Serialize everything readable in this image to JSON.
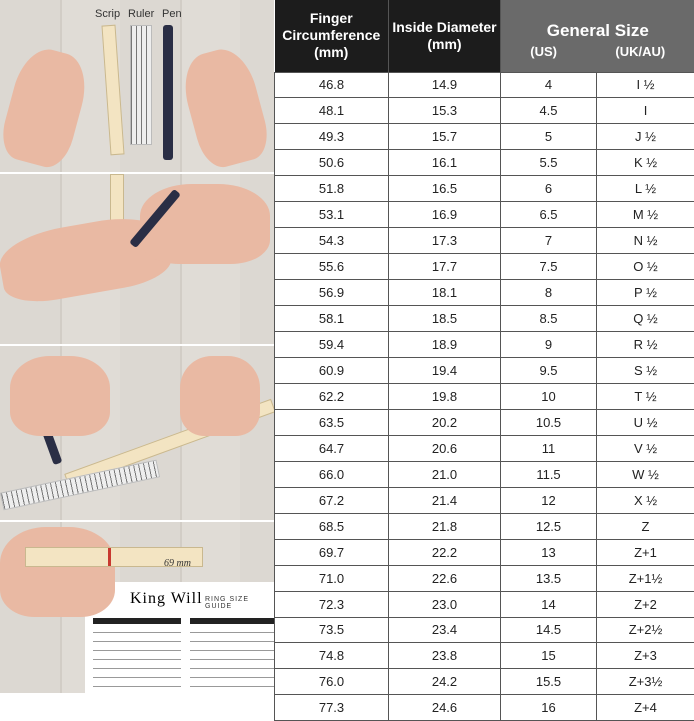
{
  "illustration": {
    "tool_labels": [
      "Scrip",
      "Ruler",
      "Pen"
    ],
    "measurement_note": "69 mm",
    "guide_brand": "King Will",
    "guide_subtitle": "RING SIZE GUIDE"
  },
  "table": {
    "headers": {
      "circumference": "Finger Circumference (mm)",
      "diameter": "Inside Diameter (mm)",
      "general": "General Size",
      "us": "(US)",
      "uk": "(UK/AU)"
    },
    "rows": [
      [
        "46.8",
        "14.9",
        "4",
        "I ½"
      ],
      [
        "48.1",
        "15.3",
        "4.5",
        "I"
      ],
      [
        "49.3",
        "15.7",
        "5",
        "J ½"
      ],
      [
        "50.6",
        "16.1",
        "5.5",
        "K ½"
      ],
      [
        "51.8",
        "16.5",
        "6",
        "L ½"
      ],
      [
        "53.1",
        "16.9",
        "6.5",
        "M ½"
      ],
      [
        "54.3",
        "17.3",
        "7",
        "N ½"
      ],
      [
        "55.6",
        "17.7",
        "7.5",
        "O ½"
      ],
      [
        "56.9",
        "18.1",
        "8",
        "P ½"
      ],
      [
        "58.1",
        "18.5",
        "8.5",
        "Q ½"
      ],
      [
        "59.4",
        "18.9",
        "9",
        "R ½"
      ],
      [
        "60.9",
        "19.4",
        "9.5",
        "S ½"
      ],
      [
        "62.2",
        "19.8",
        "10",
        "T ½"
      ],
      [
        "63.5",
        "20.2",
        "10.5",
        "U ½"
      ],
      [
        "64.7",
        "20.6",
        "11",
        "V ½"
      ],
      [
        "66.0",
        "21.0",
        "11.5",
        "W ½"
      ],
      [
        "67.2",
        "21.4",
        "12",
        "X ½"
      ],
      [
        "68.5",
        "21.8",
        "12.5",
        "Z"
      ],
      [
        "69.7",
        "22.2",
        "13",
        "Z+1"
      ],
      [
        "71.0",
        "22.6",
        "13.5",
        "Z+1½"
      ],
      [
        "72.3",
        "23.0",
        "14",
        "Z+2"
      ],
      [
        "73.5",
        "23.4",
        "14.5",
        "Z+2½"
      ],
      [
        "74.8",
        "23.8",
        "15",
        "Z+3"
      ],
      [
        "76.0",
        "24.2",
        "15.5",
        "Z+3½"
      ],
      [
        "77.3",
        "24.6",
        "16",
        "Z+4"
      ]
    ]
  }
}
